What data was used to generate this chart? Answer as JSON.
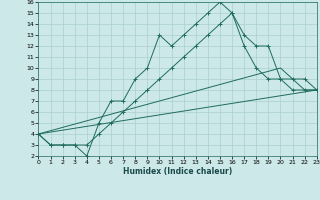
{
  "xlabel": "Humidex (Indice chaleur)",
  "background_color": "#cce8e8",
  "grid_color": "#aacfcf",
  "line_color": "#1e6b5e",
  "xlim": [
    0,
    23
  ],
  "ylim": [
    2,
    16
  ],
  "xticks": [
    0,
    1,
    2,
    3,
    4,
    5,
    6,
    7,
    8,
    9,
    10,
    11,
    12,
    13,
    14,
    15,
    16,
    17,
    18,
    19,
    20,
    21,
    22,
    23
  ],
  "yticks": [
    2,
    3,
    4,
    5,
    6,
    7,
    8,
    9,
    10,
    11,
    12,
    13,
    14,
    15,
    16
  ],
  "lines": [
    {
      "x": [
        0,
        1,
        2,
        3,
        4,
        5,
        6,
        7,
        8,
        9,
        10,
        11,
        12,
        13,
        14,
        15,
        16,
        17,
        18,
        19,
        20,
        21,
        22,
        23
      ],
      "y": [
        4,
        3,
        3,
        3,
        2,
        5,
        7,
        7,
        9,
        10,
        13,
        12,
        13,
        14,
        15,
        16,
        15,
        13,
        12,
        12,
        9,
        9,
        9,
        8
      ],
      "marker": true
    },
    {
      "x": [
        0,
        1,
        2,
        3,
        4,
        5,
        6,
        7,
        8,
        9,
        10,
        11,
        12,
        13,
        14,
        15,
        16,
        17,
        18,
        19,
        20,
        21,
        22,
        23
      ],
      "y": [
        4,
        3,
        3,
        3,
        3,
        4,
        5,
        6,
        7,
        8,
        9,
        10,
        11,
        12,
        13,
        14,
        15,
        12,
        10,
        9,
        9,
        8,
        8,
        8
      ],
      "marker": true
    },
    {
      "x": [
        0,
        23
      ],
      "y": [
        4,
        8
      ],
      "marker": false
    },
    {
      "x": [
        0,
        20,
        21,
        22,
        23
      ],
      "y": [
        4,
        10,
        9,
        8,
        8
      ],
      "marker": false
    }
  ]
}
